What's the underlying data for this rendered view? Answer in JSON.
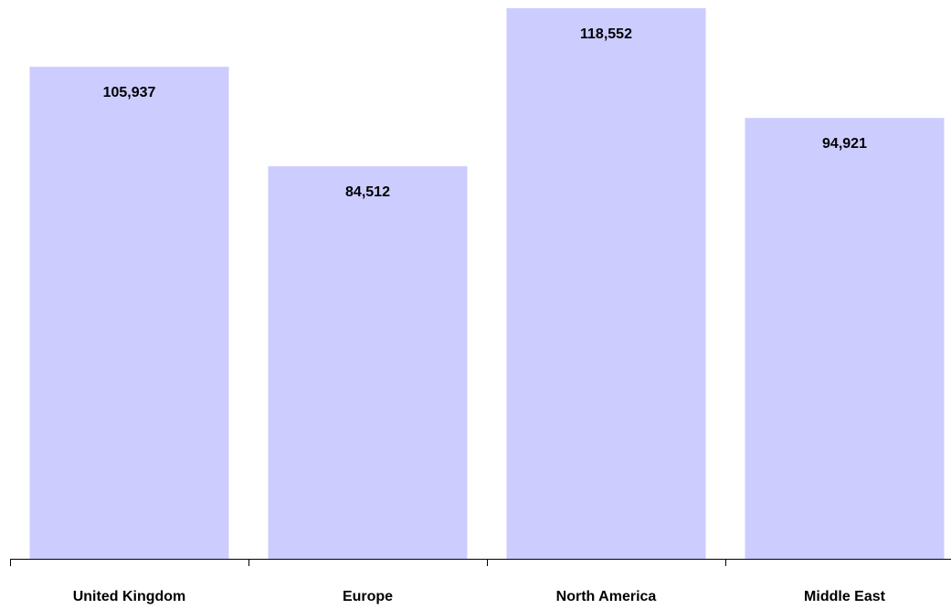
{
  "chart_data": {
    "type": "bar",
    "categories": [
      "United Kingdom",
      "Europe",
      "North America",
      "Middle East"
    ],
    "values": [
      105937,
      84512,
      118552,
      94921
    ],
    "value_labels": [
      "105,937",
      "84,512",
      "118,552",
      "94,921"
    ],
    "title": "",
    "xlabel": "",
    "ylabel": "",
    "ylim": [
      0,
      120000
    ],
    "grid": false,
    "legend": "none",
    "data_label_position": "inside-top",
    "colors": {
      "bar": "#ccccff",
      "axis": "#000000",
      "label": "#000000"
    }
  }
}
